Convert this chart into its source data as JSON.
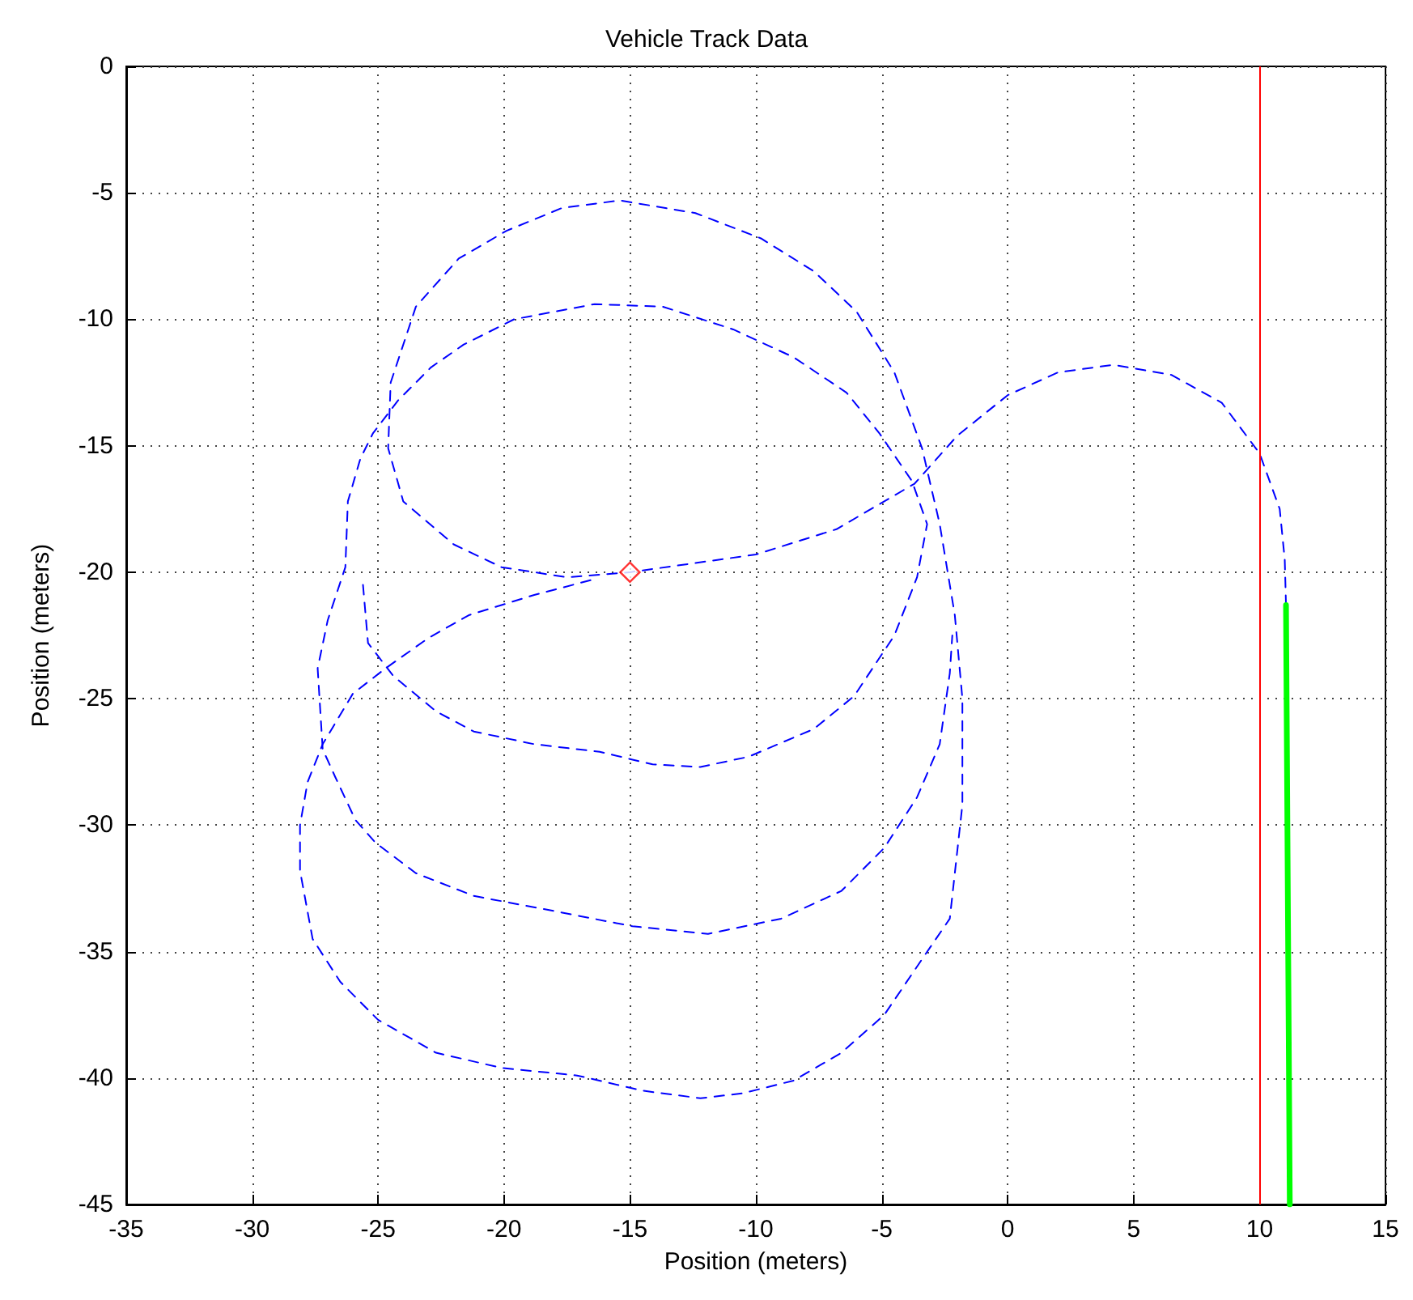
{
  "chart_data": {
    "type": "line",
    "title": "Vehicle Track Data",
    "xlabel": "Position (meters)",
    "ylabel": "Position (meters)",
    "xlim": [
      -35,
      15
    ],
    "xticks": [
      -35,
      -30,
      -25,
      -20,
      -15,
      -10,
      -5,
      0,
      5,
      10,
      15
    ],
    "ylim": [
      -45,
      0
    ],
    "yticks": [
      -45,
      -40,
      -35,
      -30,
      -25,
      -20,
      -15,
      -10,
      -5,
      0
    ],
    "grid": true,
    "ref_lines": [
      {
        "axis": "x",
        "value": 10,
        "color": "#ff0000",
        "line_style": "solid"
      }
    ],
    "series": [
      {
        "color": "#0000ff",
        "line_style": "dashed",
        "marker": "none",
        "x": [
          11.05,
          11.0,
          10.8,
          10.0,
          8.5,
          6.5,
          4.2,
          2.0,
          0.0,
          -2.0,
          -3.7,
          -6.8,
          -10.0,
          -15.0,
          -17.5,
          -20.1,
          -22.0,
          -24.0,
          -24.6,
          -24.5,
          -23.5,
          -21.8,
          -19.9,
          -17.7,
          -15.4,
          -12.4,
          -9.8,
          -7.7,
          -6.0,
          -4.5,
          -3.4,
          -2.7,
          -2.1,
          -1.8,
          -1.8,
          -2.3,
          -3.4,
          -4.9,
          -6.6,
          -8.5,
          -10.5,
          -12.2,
          -14.5,
          -17.1,
          -20.1,
          -22.7,
          -25.0,
          -26.5,
          -27.6,
          -28.1,
          -28.1,
          -27.8,
          -27.2,
          -26.0,
          -24.7,
          -23.0,
          -21.4,
          -18.8,
          -16.5
        ],
        "values": [
          -21.3,
          -19.5,
          -17.5,
          -15.3,
          -13.3,
          -12.2,
          -11.8,
          -12.1,
          -13.0,
          -14.6,
          -16.5,
          -18.3,
          -19.3,
          -20.0,
          -20.2,
          -19.8,
          -18.9,
          -17.2,
          -15.1,
          -12.5,
          -9.5,
          -7.6,
          -6.5,
          -5.6,
          -5.3,
          -5.8,
          -6.8,
          -8.1,
          -9.7,
          -12.1,
          -15.1,
          -18.1,
          -21.7,
          -25.0,
          -29.2,
          -33.7,
          -35.3,
          -37.5,
          -39.0,
          -40.1,
          -40.6,
          -40.8,
          -40.5,
          -39.9,
          -39.6,
          -39.0,
          -37.7,
          -36.2,
          -34.5,
          -31.8,
          -30.0,
          -28.3,
          -26.8,
          -24.8,
          -23.8,
          -22.6,
          -21.7,
          -20.9,
          -20.3
        ]
      },
      {
        "color": "#0000ff",
        "line_style": "dashed",
        "marker": "none",
        "x": [
          -25.6,
          -25.4,
          -24.4,
          -22.7,
          -21.2,
          -18.8,
          -16.2,
          -14.1,
          -12.2,
          -10.3,
          -7.7,
          -6.1,
          -4.5,
          -3.6,
          -3.2,
          -3.8,
          -5.1,
          -6.4,
          -8.5,
          -10.9,
          -13.7,
          -16.4,
          -19.6,
          -21.6,
          -22.9,
          -24.2,
          -25.2,
          -25.7,
          -26.2,
          -26.3,
          -27.0,
          -27.4,
          -27.2,
          -26.7,
          -25.9,
          -25.1,
          -23.5,
          -21.2,
          -18.0,
          -14.9,
          -11.9,
          -9.0,
          -6.6,
          -4.9,
          -3.6,
          -2.7,
          -2.3,
          -2.2
        ],
        "values": [
          -20.5,
          -22.8,
          -24.1,
          -25.5,
          -26.3,
          -26.8,
          -27.1,
          -27.6,
          -27.7,
          -27.3,
          -26.2,
          -24.9,
          -22.5,
          -20.2,
          -18.1,
          -16.4,
          -14.5,
          -12.9,
          -11.5,
          -10.4,
          -9.5,
          -9.4,
          -10.0,
          -11.0,
          -11.9,
          -13.2,
          -14.5,
          -15.5,
          -17.2,
          -19.8,
          -21.9,
          -23.8,
          -27.0,
          -28.1,
          -29.8,
          -30.7,
          -31.9,
          -32.8,
          -33.4,
          -34.0,
          -34.3,
          -33.7,
          -32.6,
          -30.9,
          -28.9,
          -26.8,
          -24.0,
          -22.5
        ]
      },
      {
        "color": "#00ff00",
        "line_style": "solid",
        "marker": "none",
        "x": [
          11.05,
          11.2
        ],
        "values": [
          -21.3,
          -45
        ]
      },
      {
        "type": "scatter",
        "color": "#ff0000",
        "marker": "diamond",
        "x": [
          -15
        ],
        "values": [
          -20
        ]
      }
    ]
  }
}
